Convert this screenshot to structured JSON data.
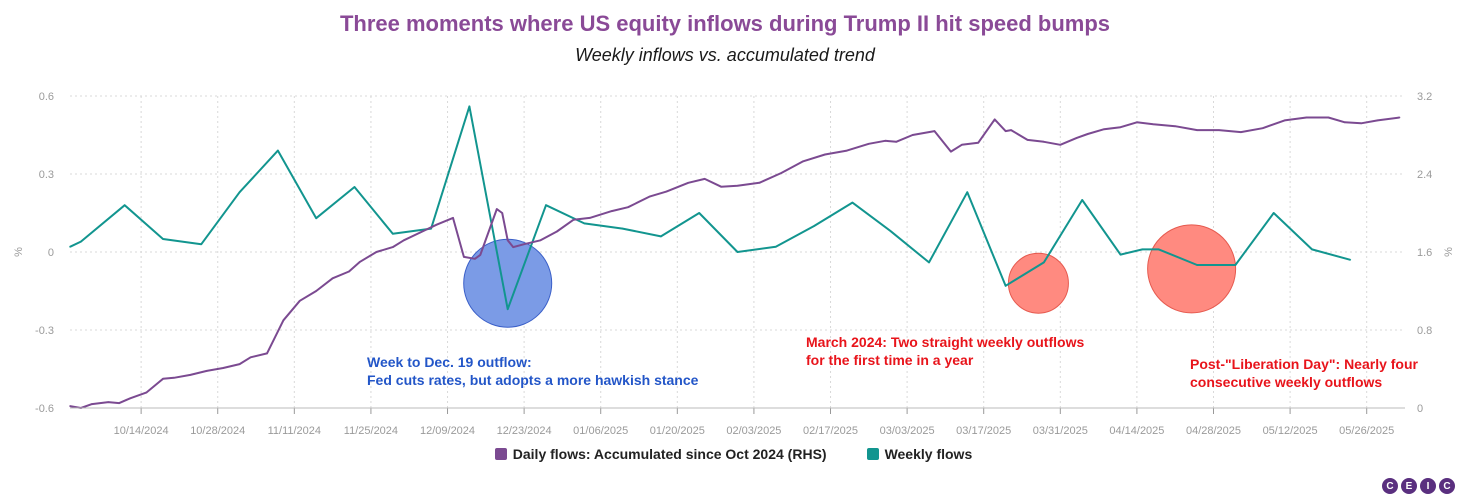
{
  "title": "Three moments where US equity inflows during Trump II hit speed bumps",
  "subtitle": "Weekly inflows vs. accumulated trend",
  "colors": {
    "accumulated": "#7b4a91",
    "weekly": "#12958f",
    "blue_circle": "#7b9be6",
    "red_circle": "#ff8a80",
    "grid": "#d9d9d9",
    "axis_text": "#9a9a9a"
  },
  "annotations": {
    "dec": [
      "Week to Dec. 19 outflow:",
      "Fed cuts rates, but adopts a more hawkish stance"
    ],
    "march": [
      "March 2024: Two straight weekly outflows",
      "for the first time in a year"
    ],
    "liberation": [
      "Post-\"Liberation Day\": Nearly four",
      "consecutive weekly outflows"
    ]
  },
  "annotation_colors": {
    "dec": "#2356c8",
    "march": "#e8141b",
    "liberation": "#e8141b"
  },
  "legend": {
    "accumulated": "Daily flows: Accumulated since Oct 2024 (RHS)",
    "weekly": "Weekly flows"
  },
  "logo": [
    "C",
    "E",
    "I",
    "C"
  ],
  "chart_data": {
    "type": "line",
    "title": "Three moments where US equity inflows during Trump II hit speed bumps",
    "subtitle": "Weekly inflows vs. accumulated trend",
    "x_tick_labels": [
      "10/14/2024",
      "10/28/2024",
      "11/11/2024",
      "11/25/2024",
      "12/09/2024",
      "12/23/2024",
      "01/06/2025",
      "01/20/2025",
      "02/03/2025",
      "02/17/2025",
      "03/03/2025",
      "03/17/2025",
      "03/31/2025",
      "04/14/2025",
      "04/28/2025",
      "05/12/2025",
      "05/26/2025"
    ],
    "xlim": [
      "2024-10-01",
      "2025-06-02"
    ],
    "y_left": {
      "label": "%",
      "ylim": [
        -0.6,
        0.6
      ],
      "ticks": [
        "0.6",
        "0.3",
        "0",
        "-0.3",
        "-0.6"
      ],
      "tick_values": [
        0.6,
        0.3,
        0,
        -0.3,
        -0.6
      ]
    },
    "y_right": {
      "label": "%",
      "ylim": [
        0,
        3.2
      ],
      "ticks": [
        "3.2",
        "2.4",
        "1.6",
        "0.8",
        "0"
      ],
      "tick_values": [
        3.2,
        2.4,
        1.6,
        0.8,
        0
      ]
    },
    "grid": true,
    "legend_position": "bottom",
    "series": [
      {
        "name": "Weekly flows",
        "axis": "left",
        "x": [
          "2024-10-01",
          "2024-10-03",
          "2024-10-11",
          "2024-10-18",
          "2024-10-25",
          "2024-11-01",
          "2024-11-08",
          "2024-11-15",
          "2024-11-22",
          "2024-11-29",
          "2024-12-06",
          "2024-12-13",
          "2024-12-20",
          "2024-12-27",
          "2025-01-03",
          "2025-01-10",
          "2025-01-17",
          "2025-01-24",
          "2025-01-31",
          "2025-02-07",
          "2025-02-14",
          "2025-02-21",
          "2025-02-28",
          "2025-03-07",
          "2025-03-14",
          "2025-03-21",
          "2025-03-28",
          "2025-04-04",
          "2025-04-11",
          "2025-04-15",
          "2025-04-18",
          "2025-04-25",
          "2025-05-02",
          "2025-05-09",
          "2025-05-16",
          "2025-05-23"
        ],
        "values": [
          0.02,
          0.04,
          0.18,
          0.05,
          0.03,
          0.23,
          0.39,
          0.13,
          0.25,
          0.07,
          0.09,
          0.56,
          -0.22,
          0.18,
          0.11,
          0.09,
          0.06,
          0.15,
          0.0,
          0.02,
          0.1,
          0.19,
          0.08,
          -0.04,
          0.23,
          -0.13,
          -0.04,
          0.2,
          -0.01,
          0.01,
          0.01,
          -0.05,
          -0.05,
          0.15,
          0.01,
          -0.03
        ]
      },
      {
        "name": "Daily flows: Accumulated since Oct 2024 (RHS)",
        "axis": "right",
        "x": [
          "2024-10-01",
          "2024-10-03",
          "2024-10-05",
          "2024-10-08",
          "2024-10-10",
          "2024-10-12",
          "2024-10-15",
          "2024-10-18",
          "2024-10-20",
          "2024-10-23",
          "2024-10-26",
          "2024-10-29",
          "2024-11-01",
          "2024-11-03",
          "2024-11-06",
          "2024-11-09",
          "2024-11-12",
          "2024-11-15",
          "2024-11-18",
          "2024-11-21",
          "2024-11-23",
          "2024-11-26",
          "2024-11-29",
          "2024-12-01",
          "2024-12-04",
          "2024-12-07",
          "2024-12-10",
          "2024-12-12",
          "2024-12-14",
          "2024-12-15",
          "2024-12-18",
          "2024-12-19",
          "2024-12-20",
          "2024-12-21",
          "2024-12-23",
          "2024-12-26",
          "2024-12-29",
          "2025-01-01",
          "2025-01-04",
          "2025-01-08",
          "2025-01-11",
          "2025-01-15",
          "2025-01-18",
          "2025-01-22",
          "2025-01-25",
          "2025-01-28",
          "2025-01-31",
          "2025-02-04",
          "2025-02-08",
          "2025-02-12",
          "2025-02-16",
          "2025-02-20",
          "2025-02-24",
          "2025-02-27",
          "2025-03-01",
          "2025-03-04",
          "2025-03-08",
          "2025-03-11",
          "2025-03-13",
          "2025-03-16",
          "2025-03-19",
          "2025-03-21",
          "2025-03-22",
          "2025-03-25",
          "2025-03-28",
          "2025-03-31",
          "2025-04-03",
          "2025-04-05",
          "2025-04-08",
          "2025-04-11",
          "2025-04-14",
          "2025-04-17",
          "2025-04-21",
          "2025-04-25",
          "2025-04-29",
          "2025-05-03",
          "2025-05-07",
          "2025-05-11",
          "2025-05-15",
          "2025-05-19",
          "2025-05-22",
          "2025-05-25",
          "2025-05-28",
          "2025-06-01"
        ],
        "values": [
          0.02,
          0.0,
          0.04,
          0.06,
          0.05,
          0.1,
          0.16,
          0.3,
          0.31,
          0.34,
          0.38,
          0.41,
          0.45,
          0.52,
          0.56,
          0.9,
          1.1,
          1.2,
          1.33,
          1.4,
          1.5,
          1.6,
          1.65,
          1.72,
          1.8,
          1.88,
          1.95,
          1.55,
          1.53,
          1.57,
          2.04,
          2.0,
          1.72,
          1.65,
          1.68,
          1.72,
          1.81,
          1.93,
          1.95,
          2.02,
          2.06,
          2.17,
          2.22,
          2.31,
          2.35,
          2.27,
          2.28,
          2.31,
          2.41,
          2.53,
          2.6,
          2.64,
          2.71,
          2.74,
          2.73,
          2.8,
          2.84,
          2.63,
          2.7,
          2.72,
          2.96,
          2.84,
          2.85,
          2.75,
          2.73,
          2.7,
          2.77,
          2.81,
          2.86,
          2.88,
          2.93,
          2.91,
          2.89,
          2.85,
          2.85,
          2.83,
          2.87,
          2.95,
          2.98,
          2.98,
          2.93,
          2.92,
          2.95,
          2.98
        ]
      }
    ]
  }
}
